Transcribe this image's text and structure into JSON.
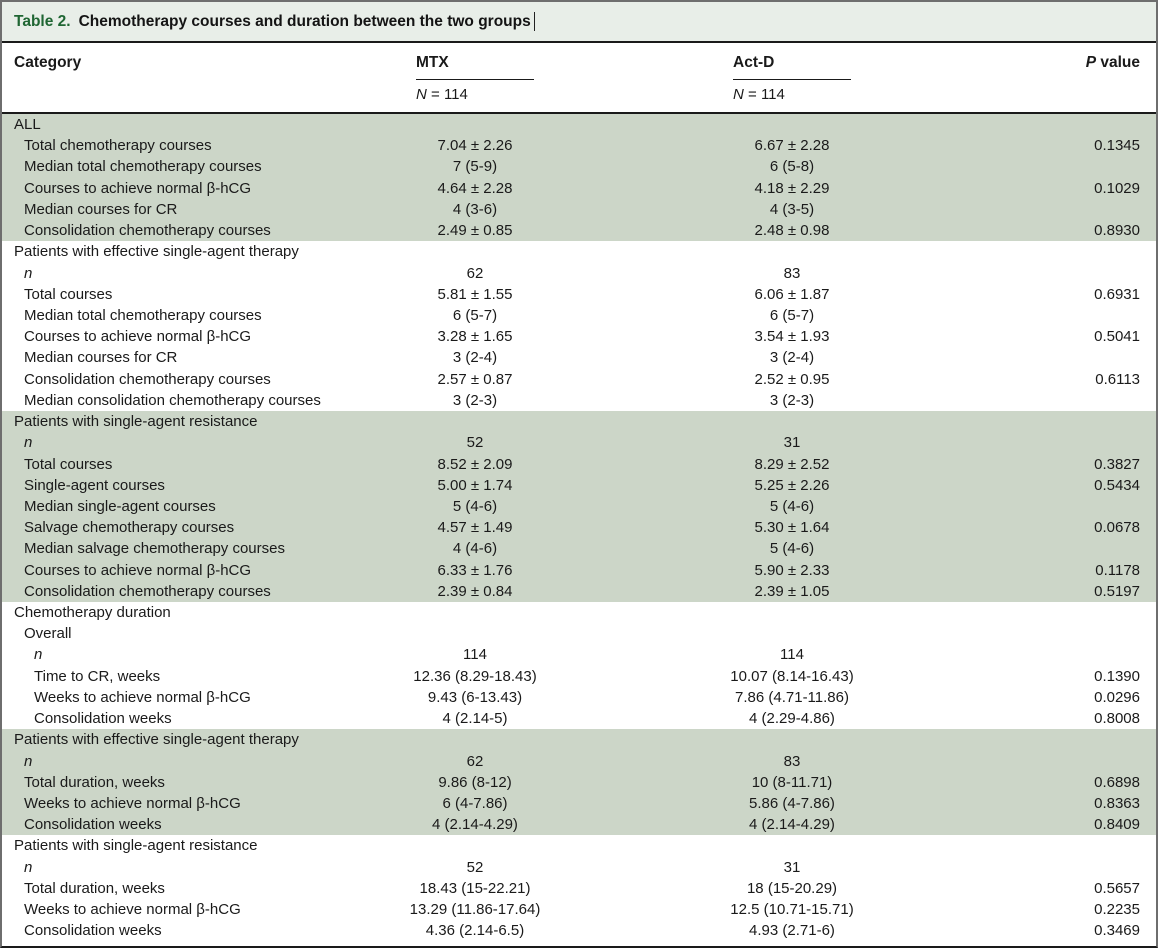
{
  "title": {
    "label": "Table 2.",
    "text": "Chemotherapy courses and duration between the two groups"
  },
  "header": {
    "category": "Category",
    "groups": [
      {
        "name": "MTX",
        "n_symbol": "N",
        "n_rest": " = 114"
      },
      {
        "name": "Act-D",
        "n_symbol": "N",
        "n_rest": " = 114"
      }
    ],
    "p_symbol": "P",
    "p_rest": " value"
  },
  "colors": {
    "title_bar_bg": "#e8eee8",
    "title_label_green": "#1f6633",
    "shaded_row_bg": "#ccd6c8",
    "rule_black": "#1a1a1a",
    "frame_gray": "#6e6e6e"
  },
  "table": {
    "rows": [
      {
        "label": "ALL",
        "indent": 0,
        "shaded": true
      },
      {
        "label": "Total chemotherapy courses",
        "indent": 1,
        "shaded": true,
        "mtx": "7.04 ± 2.26",
        "actd": "6.67 ± 2.28",
        "p": "0.1345"
      },
      {
        "label": "Median total chemotherapy courses",
        "indent": 1,
        "shaded": true,
        "mtx": "7 (5-9)",
        "actd": "6 (5-8)",
        "p": ""
      },
      {
        "label": "Courses to achieve normal β-hCG",
        "indent": 1,
        "shaded": true,
        "mtx": "4.64 ± 2.28",
        "actd": "4.18 ± 2.29",
        "p": "0.1029"
      },
      {
        "label": "Median courses for CR",
        "indent": 1,
        "shaded": true,
        "mtx": "4 (3-6)",
        "actd": "4 (3-5)",
        "p": ""
      },
      {
        "label": "Consolidation chemotherapy courses",
        "indent": 1,
        "shaded": true,
        "mtx": "2.49 ± 0.85",
        "actd": "2.48 ± 0.98",
        "p": "0.8930"
      },
      {
        "label": "Patients with effective single-agent therapy",
        "indent": 0,
        "shaded": false
      },
      {
        "label": "n",
        "italic": true,
        "indent": 1,
        "shaded": false,
        "mtx": "62",
        "actd": "83",
        "p": ""
      },
      {
        "label": "Total courses",
        "indent": 1,
        "shaded": false,
        "mtx": "5.81 ± 1.55",
        "actd": "6.06 ± 1.87",
        "p": "0.6931"
      },
      {
        "label": "Median total chemotherapy courses",
        "indent": 1,
        "shaded": false,
        "mtx": "6 (5-7)",
        "actd": "6 (5-7)",
        "p": ""
      },
      {
        "label": "Courses to achieve normal β-hCG",
        "indent": 1,
        "shaded": false,
        "mtx": "3.28 ± 1.65",
        "actd": "3.54 ± 1.93",
        "p": "0.5041"
      },
      {
        "label": "Median courses for CR",
        "indent": 1,
        "shaded": false,
        "mtx": "3 (2-4)",
        "actd": "3 (2-4)",
        "p": ""
      },
      {
        "label": "Consolidation chemotherapy courses",
        "indent": 1,
        "shaded": false,
        "mtx": "2.57 ± 0.87",
        "actd": "2.52 ± 0.95",
        "p": "0.6113"
      },
      {
        "label": "Median consolidation chemotherapy courses",
        "indent": 1,
        "shaded": false,
        "mtx": "3 (2-3)",
        "actd": "3 (2-3)",
        "p": ""
      },
      {
        "label": "Patients with single-agent resistance",
        "indent": 0,
        "shaded": true
      },
      {
        "label": "n",
        "italic": true,
        "indent": 1,
        "shaded": true,
        "mtx": "52",
        "actd": "31",
        "p": ""
      },
      {
        "label": "Total courses",
        "indent": 1,
        "shaded": true,
        "mtx": "8.52 ± 2.09",
        "actd": "8.29 ± 2.52",
        "p": "0.3827"
      },
      {
        "label": "Single-agent courses",
        "indent": 1,
        "shaded": true,
        "mtx": "5.00 ± 1.74",
        "actd": "5.25 ± 2.26",
        "p": "0.5434"
      },
      {
        "label": "Median single-agent courses",
        "indent": 1,
        "shaded": true,
        "mtx": "5 (4-6)",
        "actd": "5 (4-6)",
        "p": ""
      },
      {
        "label": "Salvage chemotherapy courses",
        "indent": 1,
        "shaded": true,
        "mtx": "4.57 ± 1.49",
        "actd": "5.30 ± 1.64",
        "p": "0.0678"
      },
      {
        "label": "Median salvage chemotherapy courses",
        "indent": 1,
        "shaded": true,
        "mtx": "4 (4-6)",
        "actd": "5 (4-6)",
        "p": ""
      },
      {
        "label": "Courses to achieve normal β-hCG",
        "indent": 1,
        "shaded": true,
        "mtx": "6.33 ± 1.76",
        "actd": "5.90 ± 2.33",
        "p": "0.1178"
      },
      {
        "label": "Consolidation chemotherapy courses",
        "indent": 1,
        "shaded": true,
        "mtx": "2.39 ± 0.84",
        "actd": "2.39 ± 1.05",
        "p": "0.5197"
      },
      {
        "label": "Chemotherapy duration",
        "indent": 0,
        "shaded": false
      },
      {
        "label": "Overall",
        "indent": 1,
        "shaded": false
      },
      {
        "label": "n",
        "italic": true,
        "indent": 2,
        "shaded": false,
        "mtx": "114",
        "actd": "114",
        "p": ""
      },
      {
        "label": "Time to CR, weeks",
        "indent": 2,
        "shaded": false,
        "mtx": "12.36 (8.29-18.43)",
        "actd": "10.07 (8.14-16.43)",
        "p": "0.1390"
      },
      {
        "label": "Weeks to achieve normal β-hCG",
        "indent": 2,
        "shaded": false,
        "mtx": "9.43 (6-13.43)",
        "actd": "7.86 (4.71-11.86)",
        "p": "0.0296"
      },
      {
        "label": "Consolidation weeks",
        "indent": 2,
        "shaded": false,
        "mtx": "4 (2.14-5)",
        "actd": "4 (2.29-4.86)",
        "p": "0.8008"
      },
      {
        "label": "Patients with effective single-agent therapy",
        "indent": 0,
        "shaded": true
      },
      {
        "label": "n",
        "italic": true,
        "indent": 1,
        "shaded": true,
        "mtx": "62",
        "actd": "83",
        "p": ""
      },
      {
        "label": "Total duration, weeks",
        "indent": 1,
        "shaded": true,
        "mtx": "9.86 (8-12)",
        "actd": "10 (8-11.71)",
        "p": "0.6898"
      },
      {
        "label": "Weeks to achieve normal β-hCG",
        "indent": 1,
        "shaded": true,
        "mtx": "6 (4-7.86)",
        "actd": "5.86 (4-7.86)",
        "p": "0.8363"
      },
      {
        "label": "Consolidation weeks",
        "indent": 1,
        "shaded": true,
        "mtx": "4 (2.14-4.29)",
        "actd": "4 (2.14-4.29)",
        "p": "0.8409"
      },
      {
        "label": "Patients with single-agent resistance",
        "indent": 0,
        "shaded": false
      },
      {
        "label": "n",
        "italic": true,
        "indent": 1,
        "shaded": false,
        "mtx": "52",
        "actd": "31",
        "p": ""
      },
      {
        "label": "Total duration, weeks",
        "indent": 1,
        "shaded": false,
        "mtx": "18.43 (15-22.21)",
        "actd": "18 (15-20.29)",
        "p": "0.5657"
      },
      {
        "label": "Weeks to achieve normal β-hCG",
        "indent": 1,
        "shaded": false,
        "mtx": "13.29 (11.86-17.64)",
        "actd": "12.5 (10.71-15.71)",
        "p": "0.2235"
      },
      {
        "label": "Consolidation weeks",
        "indent": 1,
        "shaded": false,
        "mtx": "4.36 (2.14-6.5)",
        "actd": "4.93 (2.71-6)",
        "p": "0.3469"
      }
    ]
  }
}
